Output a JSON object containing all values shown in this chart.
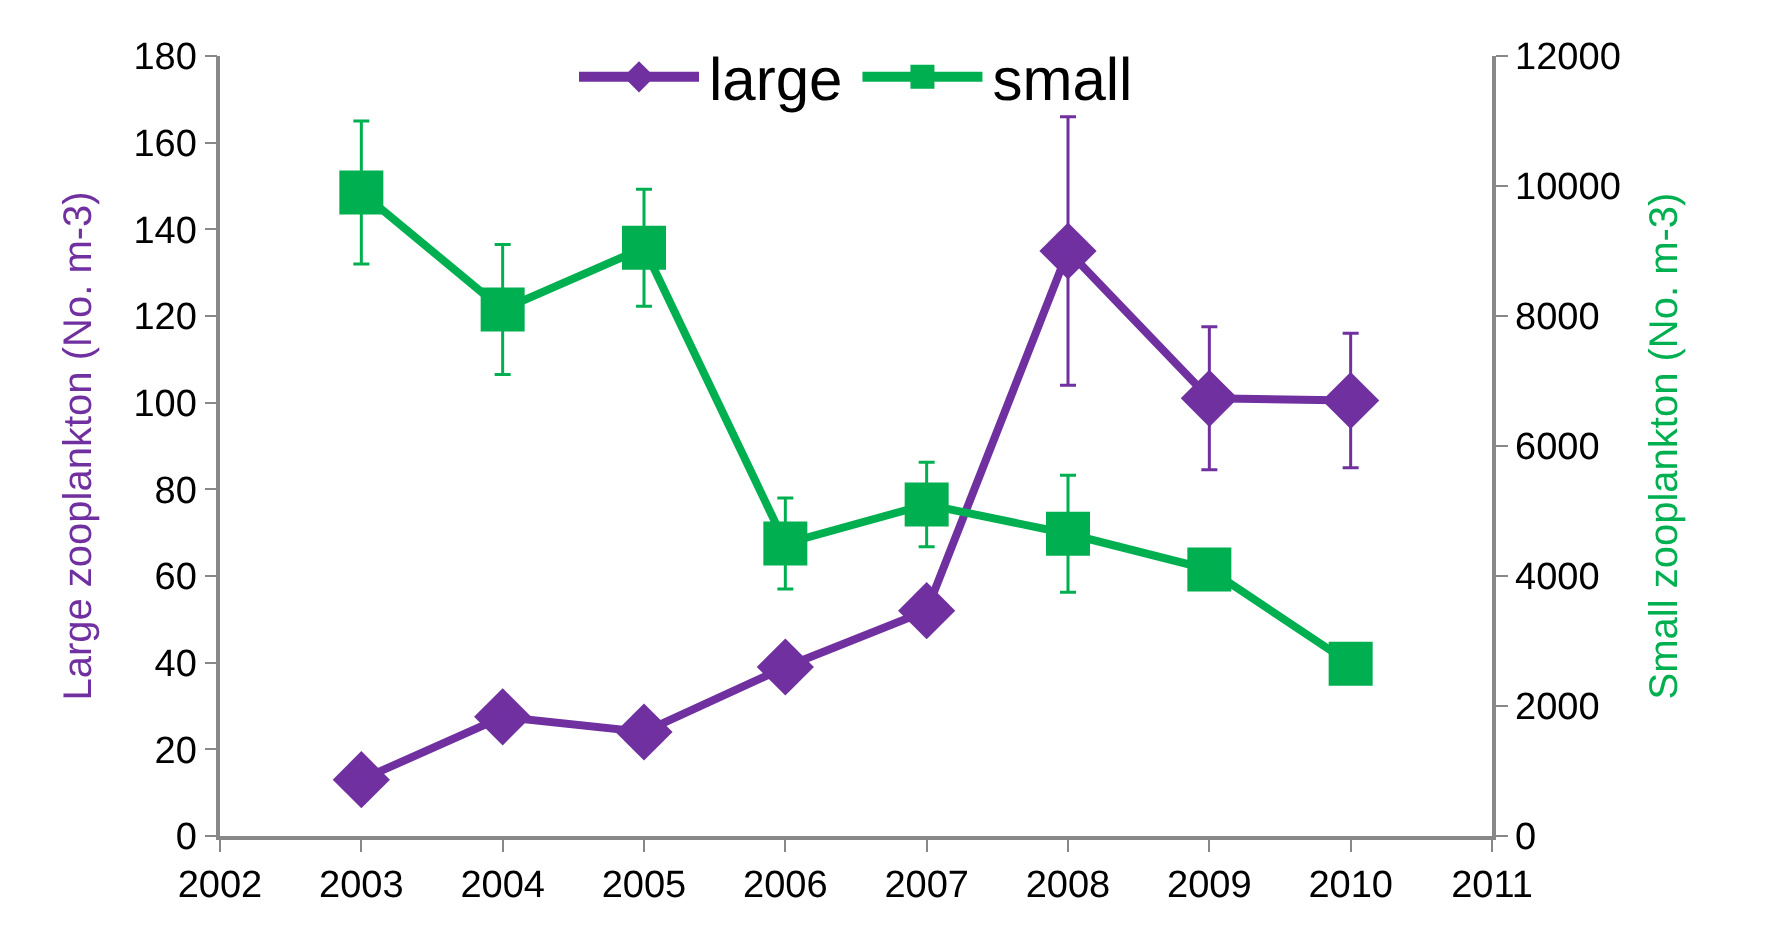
{
  "chart_data": {
    "type": "line",
    "ylabel": "Large zooplankton (No. m-3)",
    "y2label": "Small zooplankton (No. m-3)",
    "x": [
      2003,
      2004,
      2005,
      2006,
      2007,
      2008,
      2009,
      2010
    ],
    "series": [
      {
        "name": "large",
        "color": "#7030a0",
        "marker": "diamond",
        "values": [
          13,
          27.5,
          24,
          39,
          52,
          135,
          101,
          100.5
        ],
        "errors": [
          null,
          null,
          null,
          null,
          null,
          31,
          16.5,
          15.5
        ]
      },
      {
        "name": "small",
        "color": "#00b050",
        "marker": "square",
        "axis": "y2",
        "values": [
          9900,
          8100,
          9050,
          4500,
          5100,
          4650,
          4100,
          2650
        ],
        "errors": [
          1100,
          1000,
          900,
          700,
          650,
          900,
          null,
          null
        ]
      }
    ],
    "xlim": [
      2002,
      2011
    ],
    "xticks": [
      2002,
      2003,
      2004,
      2005,
      2006,
      2007,
      2008,
      2009,
      2010,
      2011
    ],
    "ylim": [
      0,
      180
    ],
    "yticks": [
      0,
      20,
      40,
      60,
      80,
      100,
      120,
      140,
      160,
      180
    ],
    "y2lim": [
      0,
      12000
    ],
    "y2ticks": [
      0,
      2000,
      4000,
      6000,
      8000,
      10000,
      12000
    ],
    "legend": "top",
    "line_style": "solid"
  }
}
